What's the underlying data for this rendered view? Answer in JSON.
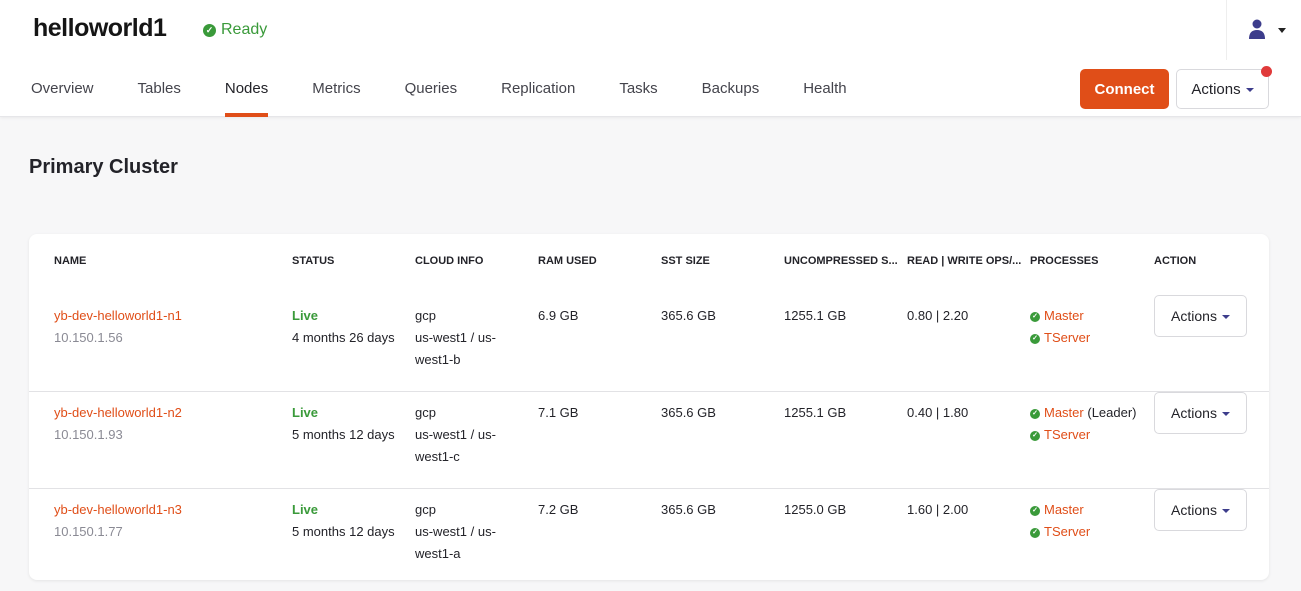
{
  "app": {
    "title": "helloworld1",
    "status": "Ready",
    "status_color": "#3a9a3a",
    "accent": "#e04e18"
  },
  "tabs": [
    {
      "label": "Overview"
    },
    {
      "label": "Tables"
    },
    {
      "label": "Nodes",
      "active": true
    },
    {
      "label": "Metrics"
    },
    {
      "label": "Queries"
    },
    {
      "label": "Replication"
    },
    {
      "label": "Tasks"
    },
    {
      "label": "Backups"
    },
    {
      "label": "Health"
    }
  ],
  "toolbar": {
    "connect": "Connect",
    "actions": "Actions"
  },
  "section_title": "Primary Cluster",
  "table": {
    "headers": [
      "NAME",
      "STATUS",
      "CLOUD INFO",
      "RAM USED",
      "SST SIZE",
      "UNCOMPRESSED S...",
      "READ | WRITE OPS/...",
      "PROCESSES",
      "ACTION"
    ],
    "rows": [
      {
        "name": "yb-dev-helloworld1-n1",
        "ip": "10.150.1.56",
        "status": "Live",
        "uptime": "4 months 26 days",
        "cloud": "gcp",
        "region1": "us-west1 / us-",
        "region2": "west1-b",
        "ram": "6.9 GB",
        "sst": "365.6 GB",
        "uncompressed": "1255.1 GB",
        "ops": "0.80 | 2.20",
        "master": "Master",
        "leader": "",
        "tserver": "TServer",
        "action": "Actions"
      },
      {
        "name": "yb-dev-helloworld1-n2",
        "ip": "10.150.1.93",
        "status": "Live",
        "uptime": "5 months 12 days",
        "cloud": "gcp",
        "region1": "us-west1 / us-",
        "region2": "west1-c",
        "ram": "7.1 GB",
        "sst": "365.6 GB",
        "uncompressed": "1255.1 GB",
        "ops": "0.40 | 1.80",
        "master": "Master",
        "leader": "(Leader)",
        "tserver": "TServer",
        "action": "Actions"
      },
      {
        "name": "yb-dev-helloworld1-n3",
        "ip": "10.150.1.77",
        "status": "Live",
        "uptime": "5 months 12 days",
        "cloud": "gcp",
        "region1": "us-west1 / us-",
        "region2": "west1-a",
        "ram": "7.2 GB",
        "sst": "365.6 GB",
        "uncompressed": "1255.0 GB",
        "ops": "1.60 | 2.00",
        "master": "Master",
        "leader": "",
        "tserver": "TServer",
        "action": "Actions"
      }
    ]
  }
}
